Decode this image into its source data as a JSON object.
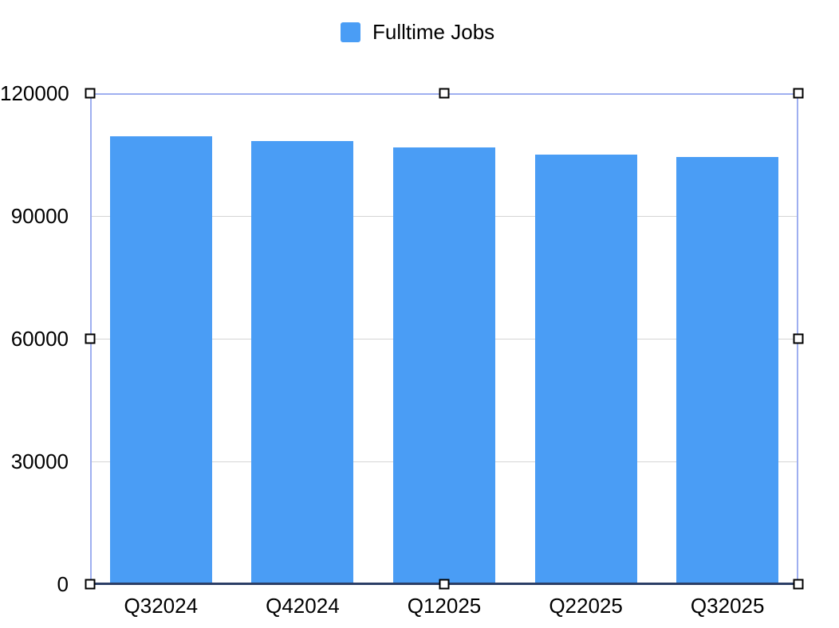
{
  "legend": {
    "label": "Fulltime Jobs",
    "swatch_icon": "series-color-swatch"
  },
  "chart_data": {
    "type": "bar",
    "title": "",
    "xlabel": "",
    "ylabel": "",
    "categories": [
      "Q32024",
      "Q42024",
      "Q12025",
      "Q22025",
      "Q32025"
    ],
    "series": [
      {
        "name": "Fulltime Jobs",
        "values": [
          109500,
          108300,
          106800,
          105000,
          104400
        ]
      }
    ],
    "ylim": [
      0,
      120000
    ],
    "y_ticks": [
      0,
      30000,
      60000,
      90000,
      120000
    ],
    "y_tick_labels": [
      "0",
      "30000",
      "60000",
      "90000",
      "120000"
    ],
    "grid": true,
    "legend_position": "top-center"
  },
  "colors": {
    "background": "#FFFFFF",
    "bar": "#4A9DF5",
    "gridline": "#D5D5D5",
    "axis_line": "#2B3E66",
    "selection_border": "#9FAFF0",
    "handle_fill": "#FFFFFF",
    "handle_border": "#000000",
    "text": "#000000"
  },
  "selection": {
    "selected": true,
    "handles": [
      "top-left",
      "top-center",
      "top-right",
      "middle-left",
      "middle-right",
      "bottom-left",
      "bottom-center",
      "bottom-right"
    ]
  }
}
